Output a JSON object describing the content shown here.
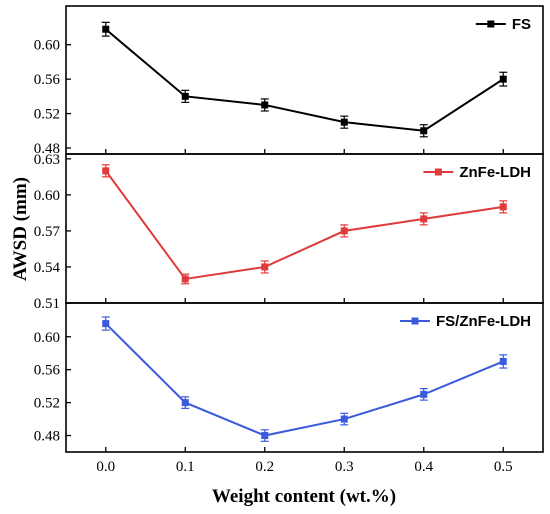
{
  "chart_data": {
    "type": "line",
    "layout": "three vertically stacked panels sharing x axis",
    "xlabel": "Weight content (wt.%)",
    "ylabel": "AWSD (mm)",
    "x": [
      0.0,
      0.1,
      0.2,
      0.3,
      0.4,
      0.5
    ],
    "x_tick_labels": [
      "0.0",
      "0.1",
      "0.2",
      "0.3",
      "0.4",
      "0.5"
    ],
    "xlim": [
      -0.05,
      0.55
    ],
    "panels": [
      {
        "series_name": "FS",
        "color": "#000000",
        "values": [
          0.618,
          0.54,
          0.53,
          0.51,
          0.5,
          0.56
        ],
        "errors": [
          0.008,
          0.007,
          0.007,
          0.007,
          0.007,
          0.008
        ],
        "ylim": [
          0.473,
          0.645
        ],
        "yticks": [
          0.48,
          0.52,
          0.56,
          0.6
        ],
        "ytick_labels": [
          "0.48",
          "0.52",
          "0.56",
          "0.60"
        ],
        "legend": "top-right"
      },
      {
        "series_name": "ZnFe-LDH",
        "color": "#e03a3a",
        "values": [
          0.62,
          0.53,
          0.54,
          0.57,
          0.58,
          0.59
        ],
        "errors": [
          0.005,
          0.004,
          0.005,
          0.005,
          0.005,
          0.005
        ],
        "ylim": [
          0.51,
          0.634
        ],
        "yticks": [
          0.51,
          0.54,
          0.57,
          0.6,
          0.63
        ],
        "ytick_labels": [
          "0.51",
          "0.54",
          "0.57",
          "0.60",
          "0.63"
        ],
        "legend": "top-right"
      },
      {
        "series_name": "FS/ZnFe-LDH",
        "color": "#3a5bdc",
        "values": [
          0.616,
          0.52,
          0.48,
          0.5,
          0.53,
          0.57
        ],
        "errors": [
          0.008,
          0.007,
          0.007,
          0.007,
          0.007,
          0.008
        ],
        "ylim": [
          0.46,
          0.641
        ],
        "yticks": [
          0.48,
          0.52,
          0.56,
          0.6
        ],
        "ytick_labels": [
          "0.48",
          "0.52",
          "0.56",
          "0.60"
        ],
        "legend": "top-right"
      }
    ]
  }
}
